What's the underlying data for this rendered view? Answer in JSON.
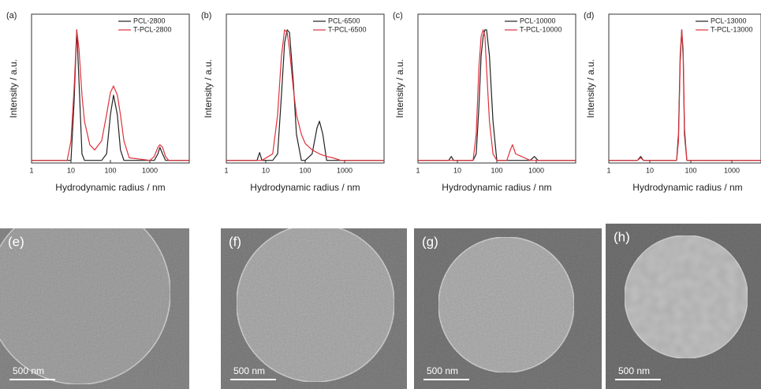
{
  "chart_data": [
    {
      "type": "line",
      "panel_label": "(a)",
      "xlabel": "Hydrodynamic radius / nm",
      "ylabel": "Intensity / a.u.",
      "log_x": true,
      "legend": "upper right",
      "xlim": [
        1,
        10000
      ],
      "xticks": [
        1,
        10,
        100,
        1000
      ],
      "ylim": [
        -0.02,
        1.12
      ],
      "x": [
        1,
        8,
        10,
        12,
        14,
        16,
        19,
        22,
        30,
        40,
        60,
        80,
        100,
        120,
        150,
        180,
        220,
        300,
        1000,
        1300,
        1600,
        1800,
        2100,
        2500,
        3000,
        10000
      ],
      "series": [
        {
          "name": "PCL-2800",
          "color": "#222222",
          "values": [
            0,
            0,
            0,
            0.45,
            1.0,
            0.6,
            0.05,
            0,
            0,
            0,
            0,
            0.05,
            0.35,
            0.5,
            0.35,
            0.08,
            0,
            0,
            0,
            0,
            0.05,
            0.1,
            0.05,
            0,
            0,
            0
          ]
        },
        {
          "name": "T-PCL-2800",
          "color": "#e0303a",
          "values": [
            0,
            0,
            0.15,
            0.55,
            1.0,
            0.85,
            0.5,
            0.3,
            0.12,
            0.08,
            0.15,
            0.35,
            0.52,
            0.57,
            0.5,
            0.35,
            0.15,
            0.02,
            0,
            0.03,
            0.1,
            0.12,
            0.1,
            0.03,
            0,
            0
          ]
        }
      ]
    },
    {
      "type": "line",
      "panel_label": "(b)",
      "xlabel": "Hydrodynamic radius / nm",
      "ylabel": "Intensity / a.u.",
      "log_x": true,
      "legend": "upper right",
      "xlim": [
        1,
        10000
      ],
      "xticks": [
        1,
        10,
        100,
        1000
      ],
      "ylim": [
        -0.02,
        1.12
      ],
      "x": [
        1,
        6,
        7,
        8,
        15,
        20,
        25,
        30,
        35,
        40,
        50,
        60,
        80,
        100,
        150,
        200,
        230,
        280,
        350,
        500,
        800,
        10000
      ],
      "series": [
        {
          "name": "PCL-6500",
          "color": "#222222",
          "values": [
            0,
            0,
            0.06,
            0,
            0,
            0.05,
            0.5,
            0.9,
            1.0,
            0.98,
            0.6,
            0.2,
            0,
            0,
            0.05,
            0.25,
            0.3,
            0.2,
            0,
            0,
            0,
            0
          ]
        },
        {
          "name": "T-PCL-6500",
          "color": "#e0303a",
          "values": [
            0,
            0,
            0,
            0,
            0.05,
            0.35,
            0.8,
            1.0,
            0.98,
            0.85,
            0.55,
            0.35,
            0.2,
            0.13,
            0.08,
            0.06,
            0.05,
            0.04,
            0.03,
            0.02,
            0,
            0
          ]
        }
      ]
    },
    {
      "type": "line",
      "panel_label": "(c)",
      "xlabel": "Hydrodynamic radius / nm",
      "ylabel": "Intensity / a.u.",
      "log_x": true,
      "legend": "upper right",
      "xlim": [
        1,
        10000
      ],
      "xticks": [
        1,
        10,
        100,
        1000
      ],
      "ylim": [
        -0.02,
        1.12
      ],
      "x": [
        1,
        6,
        7,
        8,
        25,
        30,
        35,
        40,
        45,
        50,
        55,
        65,
        80,
        100,
        180,
        220,
        250,
        300,
        700,
        900,
        1100,
        10000
      ],
      "series": [
        {
          "name": "PCL-10000",
          "color": "#222222",
          "values": [
            0,
            0,
            0.03,
            0,
            0,
            0.05,
            0.4,
            0.8,
            0.95,
            1.0,
            1.0,
            0.8,
            0.3,
            0,
            0,
            0,
            0,
            0,
            0,
            0.03,
            0,
            0
          ]
        },
        {
          "name": "T-PCL-10000",
          "color": "#e0303a",
          "values": [
            0,
            0,
            0,
            0,
            0,
            0.2,
            0.7,
            0.95,
            1.0,
            0.95,
            0.7,
            0.3,
            0.05,
            0,
            0,
            0.08,
            0.12,
            0.05,
            0,
            0,
            0,
            0
          ]
        }
      ]
    },
    {
      "type": "line",
      "panel_label": "(d)",
      "xlabel": "Hydrodynamic radius / nm",
      "ylabel": "Intensity / a.u.",
      "log_x": true,
      "legend": "upper right",
      "xlim": [
        1,
        7000
      ],
      "xticks": [
        1,
        10,
        100,
        1000
      ],
      "ylim": [
        -0.02,
        1.12
      ],
      "x": [
        1,
        5,
        6,
        7,
        45,
        50,
        55,
        60,
        65,
        70,
        80,
        7000
      ],
      "series": [
        {
          "name": "PCL-13000",
          "color": "#222222",
          "values": [
            0,
            0,
            0.03,
            0,
            0,
            0.2,
            0.8,
            1.0,
            0.8,
            0.2,
            0,
            0
          ]
        },
        {
          "name": "T-PCL-13000",
          "color": "#e0303a",
          "values": [
            0,
            0,
            0.02,
            0,
            0,
            0.15,
            0.75,
            1.0,
            0.85,
            0.25,
            0,
            0
          ]
        }
      ]
    }
  ],
  "images": [
    {
      "label": "(e)",
      "scale_bar": "500 nm"
    },
    {
      "label": "(f)",
      "scale_bar": "500 nm"
    },
    {
      "label": "(g)",
      "scale_bar": "500 nm"
    },
    {
      "label": "(h)",
      "scale_bar": "500 nm"
    }
  ]
}
